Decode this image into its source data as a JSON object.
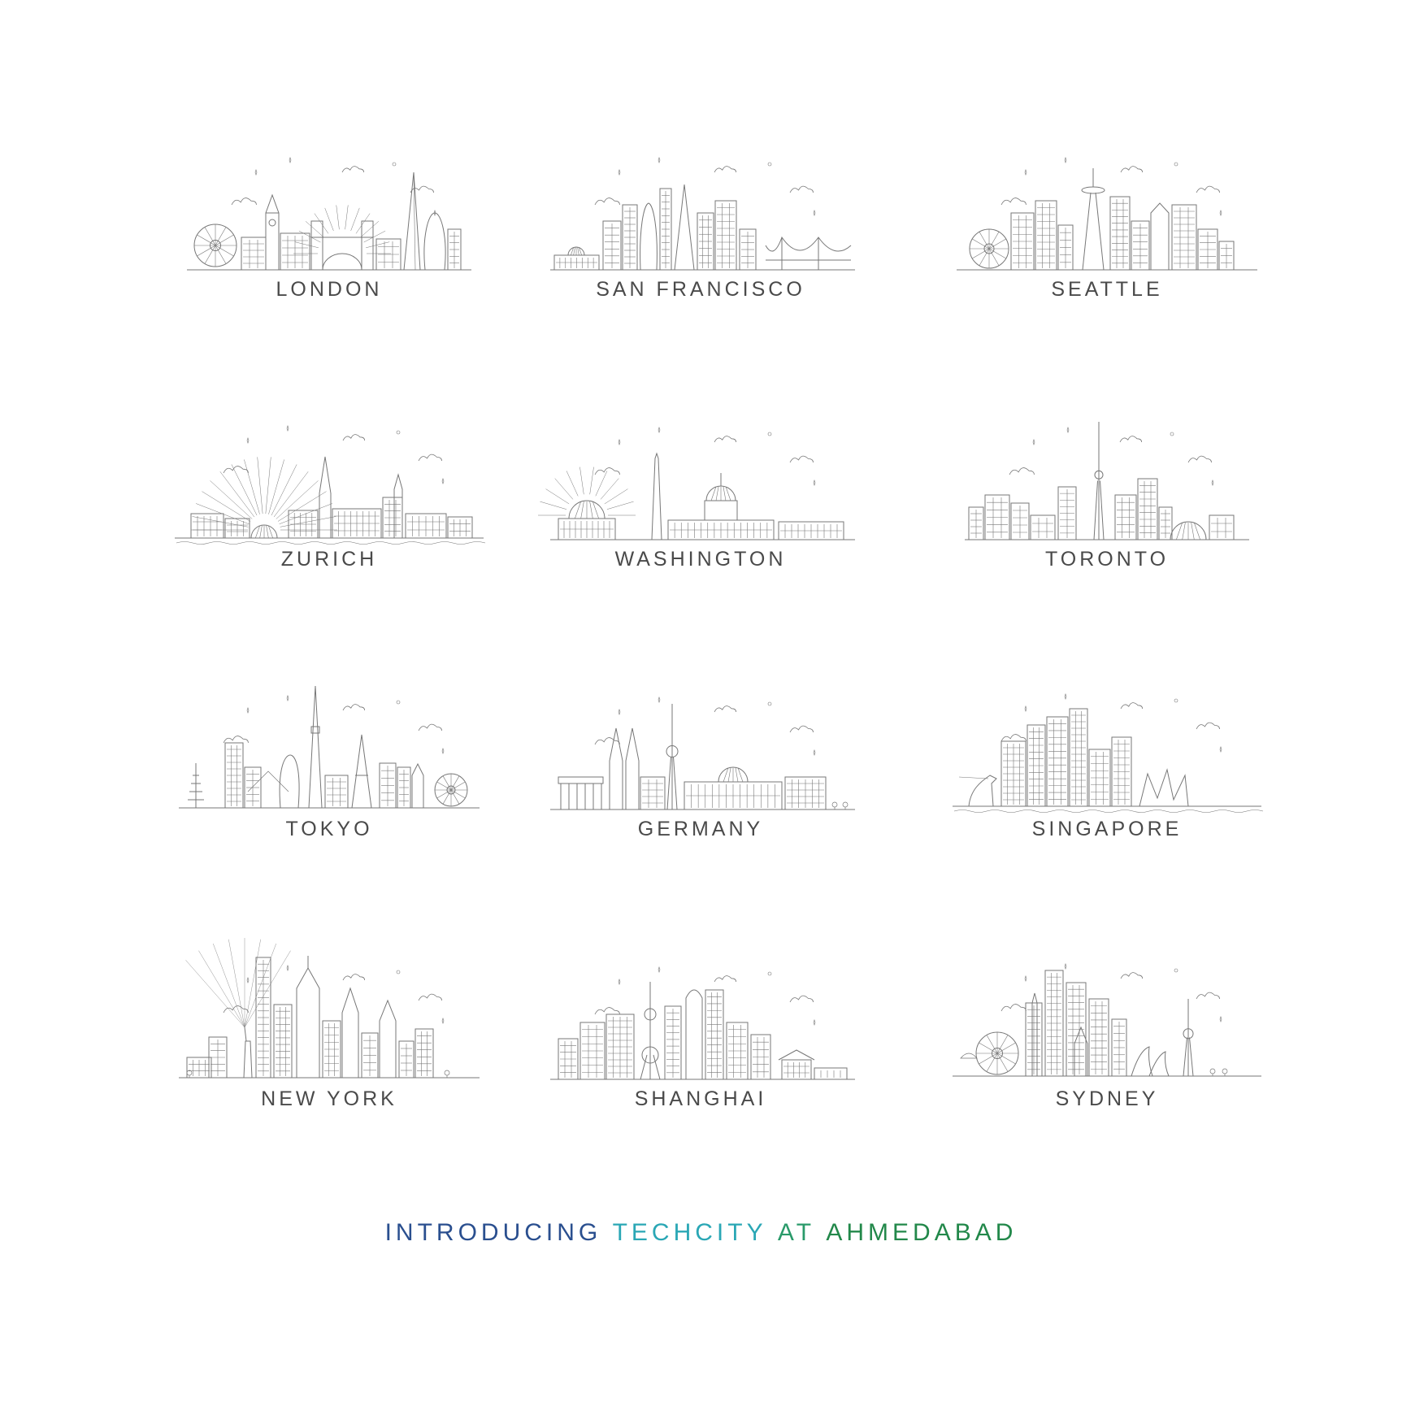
{
  "cities": [
    {
      "name": "LONDON",
      "icon": "london-skyline-icon"
    },
    {
      "name": "SAN FRANCISCO",
      "icon": "san-francisco-skyline-icon"
    },
    {
      "name": "SEATTLE",
      "icon": "seattle-skyline-icon"
    },
    {
      "name": "ZURICH",
      "icon": "zurich-skyline-icon"
    },
    {
      "name": "WASHINGTON",
      "icon": "washington-skyline-icon"
    },
    {
      "name": "TORONTO",
      "icon": "toronto-skyline-icon"
    },
    {
      "name": "TOKYO",
      "icon": "tokyo-skyline-icon"
    },
    {
      "name": "GERMANY",
      "icon": "germany-skyline-icon"
    },
    {
      "name": "SINGAPORE",
      "icon": "singapore-skyline-icon"
    },
    {
      "name": "NEW YORK",
      "icon": "new-york-skyline-icon"
    },
    {
      "name": "SHANGHAI",
      "icon": "shanghai-skyline-icon"
    },
    {
      "name": "SYDNEY",
      "icon": "sydney-skyline-icon"
    }
  ],
  "tagline": {
    "part1": "INTRODUCING",
    "part2": "TECHCITY",
    "part3": "AT",
    "part4": "AHMEDABAD",
    "colors": {
      "part1": "#2a4f8f",
      "part2": "#2aa7b5",
      "part3": "#2a9a6a",
      "part4": "#22884a"
    }
  },
  "colors": {
    "line": "#6e6e6e",
    "label": "#4a4a4a",
    "background": "#ffffff"
  }
}
